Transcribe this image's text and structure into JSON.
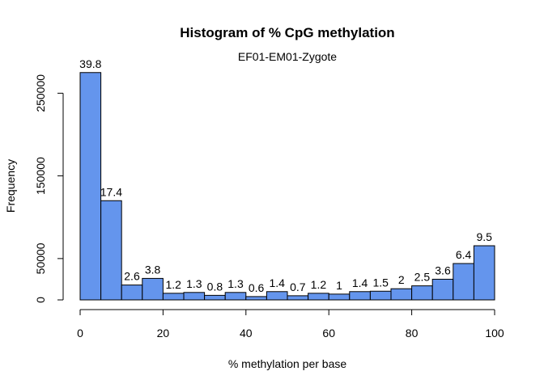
{
  "chart_data": {
    "type": "bar",
    "title": "Histogram of % CpG methylation",
    "subtitle": "EF01-EM01-Zygote",
    "xlabel": "% methylation per base",
    "ylabel": "Frequency",
    "xlim": [
      0,
      100
    ],
    "ylim": [
      0,
      275000
    ],
    "x_ticks": [
      "0",
      "20",
      "40",
      "60",
      "80",
      "100"
    ],
    "y_ticks": [
      "0",
      "50000",
      "150000",
      "250000"
    ],
    "bin_width": 5,
    "bins": [
      {
        "x0": 0,
        "x1": 5,
        "value": 275000,
        "label": "39.8"
      },
      {
        "x0": 5,
        "x1": 10,
        "value": 120000,
        "label": "17.4"
      },
      {
        "x0": 10,
        "x1": 15,
        "value": 18000,
        "label": "2.6"
      },
      {
        "x0": 15,
        "x1": 20,
        "value": 26000,
        "label": "3.8"
      },
      {
        "x0": 20,
        "x1": 25,
        "value": 8000,
        "label": "1.2"
      },
      {
        "x0": 25,
        "x1": 30,
        "value": 9000,
        "label": "1.3"
      },
      {
        "x0": 30,
        "x1": 35,
        "value": 5500,
        "label": "0.8"
      },
      {
        "x0": 35,
        "x1": 40,
        "value": 9000,
        "label": "1.3"
      },
      {
        "x0": 40,
        "x1": 45,
        "value": 4000,
        "label": "0.6"
      },
      {
        "x0": 45,
        "x1": 50,
        "value": 10000,
        "label": "1.4"
      },
      {
        "x0": 50,
        "x1": 55,
        "value": 5000,
        "label": "0.7"
      },
      {
        "x0": 55,
        "x1": 60,
        "value": 8000,
        "label": "1.2"
      },
      {
        "x0": 60,
        "x1": 65,
        "value": 7000,
        "label": "1"
      },
      {
        "x0": 65,
        "x1": 70,
        "value": 10000,
        "label": "1.4"
      },
      {
        "x0": 70,
        "x1": 75,
        "value": 10500,
        "label": "1.5"
      },
      {
        "x0": 75,
        "x1": 80,
        "value": 13500,
        "label": "2"
      },
      {
        "x0": 80,
        "x1": 85,
        "value": 17000,
        "label": "2.5"
      },
      {
        "x0": 85,
        "x1": 90,
        "value": 25000,
        "label": "3.6"
      },
      {
        "x0": 90,
        "x1": 95,
        "value": 44000,
        "label": "6.4"
      },
      {
        "x0": 95,
        "x1": 100,
        "value": 65500,
        "label": "9.5"
      }
    ],
    "bar_color": "#6495ED",
    "bar_stroke": "#000000",
    "grid": false,
    "legend": "none"
  }
}
